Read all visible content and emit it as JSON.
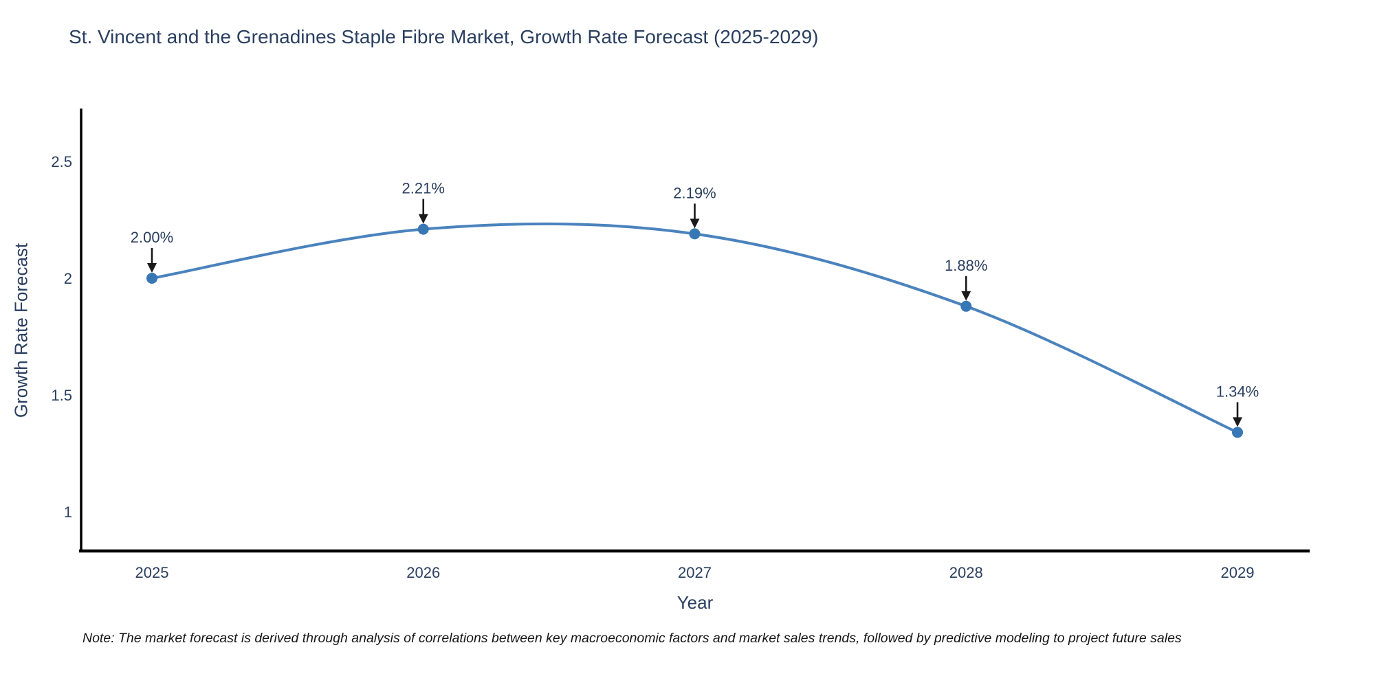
{
  "chart_data": {
    "type": "line",
    "title": "St. Vincent and the Grenadines Staple Fibre Market, Growth Rate Forecast (2025-2029)",
    "xlabel": "Year",
    "ylabel": "Growth Rate Forecast",
    "x": [
      2025,
      2026,
      2027,
      2028,
      2029
    ],
    "series": [
      {
        "name": "Growth Rate Forecast",
        "values": [
          2.0,
          2.21,
          2.19,
          1.88,
          1.34
        ]
      }
    ],
    "point_labels": [
      "2.00%",
      "2.21%",
      "2.19%",
      "1.88%",
      "1.34%"
    ],
    "xtick_labels": [
      "2025",
      "2026",
      "2027",
      "2028",
      "2029"
    ],
    "ytick_values": [
      1,
      1.5,
      2,
      2.5
    ],
    "ytick_labels": [
      "1",
      "1.5",
      "2",
      "2.5"
    ],
    "ylim": [
      0.83,
      2.73
    ],
    "grid": false,
    "legend_position": "none",
    "curve_style": "spline",
    "colors": {
      "line": "#4a83bd",
      "marker": "#3777b4",
      "axis": "#000000",
      "arrow": "#1a1a1a",
      "text": "#2a3f5f"
    }
  },
  "note": "Note: The market forecast is derived through analysis of correlations between key macroeconomic factors and market sales trends, followed by predictive modeling to project future sales"
}
